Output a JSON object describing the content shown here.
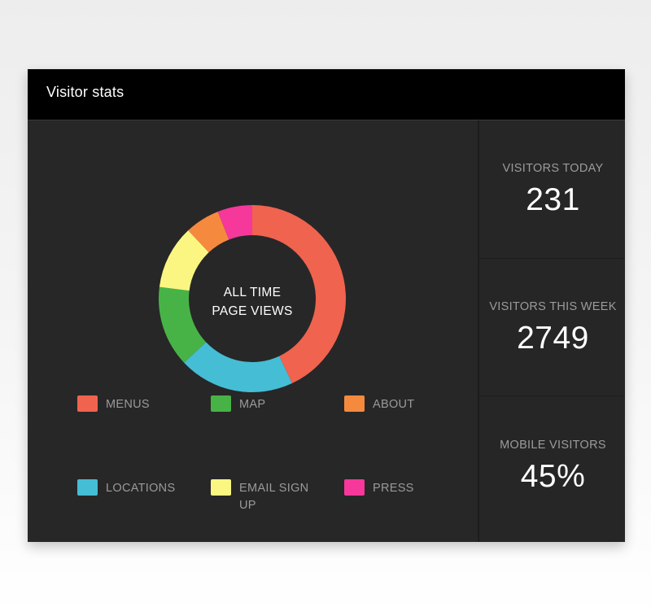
{
  "header": {
    "title": "Visitor stats"
  },
  "chart_data": {
    "type": "pie",
    "center_label": [
      "ALL TIME",
      "PAGE VIEWS"
    ],
    "slices": [
      {
        "label": "MENUS",
        "value": 43,
        "color": "#f0634f"
      },
      {
        "label": "LOCATIONS",
        "value": 20,
        "color": "#45bdd5"
      },
      {
        "label": "MAP",
        "value": 14,
        "color": "#47b347"
      },
      {
        "label": "EMAIL SIGN UP",
        "value": 11,
        "color": "#fbf681"
      },
      {
        "label": "ABOUT",
        "value": 6,
        "color": "#f58a3f"
      },
      {
        "label": "PRESS",
        "value": 6,
        "color": "#f5389a"
      }
    ]
  },
  "legend": [
    {
      "label": "MENUS",
      "color": "#f0634f"
    },
    {
      "label": "MAP",
      "color": "#47b347"
    },
    {
      "label": "ABOUT",
      "color": "#f58a3f"
    },
    {
      "label": "LOCATIONS",
      "color": "#45bdd5"
    },
    {
      "label": "EMAIL SIGN UP",
      "color": "#fbf681"
    },
    {
      "label": "PRESS",
      "color": "#f5389a"
    }
  ],
  "stats": [
    {
      "label": "VISITORS TODAY",
      "value": "231"
    },
    {
      "label": "VISITORS THIS WEEK",
      "value": "2749"
    },
    {
      "label": "MOBILE VISITORS",
      "value": "45%"
    }
  ]
}
